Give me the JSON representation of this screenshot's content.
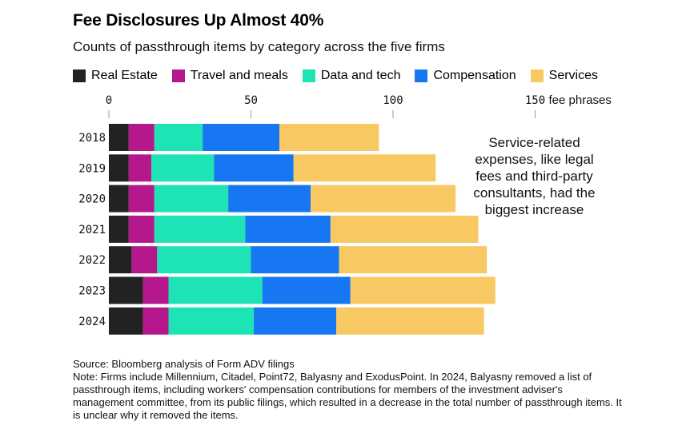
{
  "title": "Fee Disclosures Up Almost 40%",
  "subtitle": "Counts of passthrough items by category across the five firms",
  "annotation": "Service-related expenses, like legal fees and third-party consultants, had the biggest increase",
  "source": "Source: Bloomberg analysis of Form ADV filings",
  "note": "Note: Firms include Millennium, Citadel, Point72, Balyasny and ExodusPoint. In 2024, Balyasny removed a list of passthrough items, including workers' compensation contributions for members of the investment adviser's management committee, from its public filings, which resulted in a decrease in the total number of passthrough items. It is unclear why it removed the items.",
  "chart_data": {
    "type": "bar",
    "orientation": "horizontal",
    "stacked": true,
    "categories": [
      "2018",
      "2019",
      "2020",
      "2021",
      "2022",
      "2023",
      "2024"
    ],
    "series": [
      {
        "name": "Real Estate",
        "color": "#222222",
        "values": [
          7,
          7,
          7,
          7,
          8,
          12,
          12
        ]
      },
      {
        "name": "Travel and meals",
        "color": "#b5178c",
        "values": [
          9,
          8,
          9,
          9,
          9,
          9,
          9
        ]
      },
      {
        "name": "Data and tech",
        "color": "#1ee3b4",
        "values": [
          17,
          22,
          26,
          32,
          33,
          33,
          30
        ]
      },
      {
        "name": "Compensation",
        "color": "#1777f2",
        "values": [
          27,
          28,
          29,
          30,
          31,
          31,
          29
        ]
      },
      {
        "name": "Services",
        "color": "#f8c862",
        "values": [
          35,
          50,
          51,
          52,
          52,
          51,
          52
        ]
      }
    ],
    "xlim": [
      0,
      150
    ],
    "xticks": [
      "0",
      "50",
      "100",
      "150"
    ],
    "xunit": "fee phrases",
    "legend_position": "top",
    "grid": false
  }
}
